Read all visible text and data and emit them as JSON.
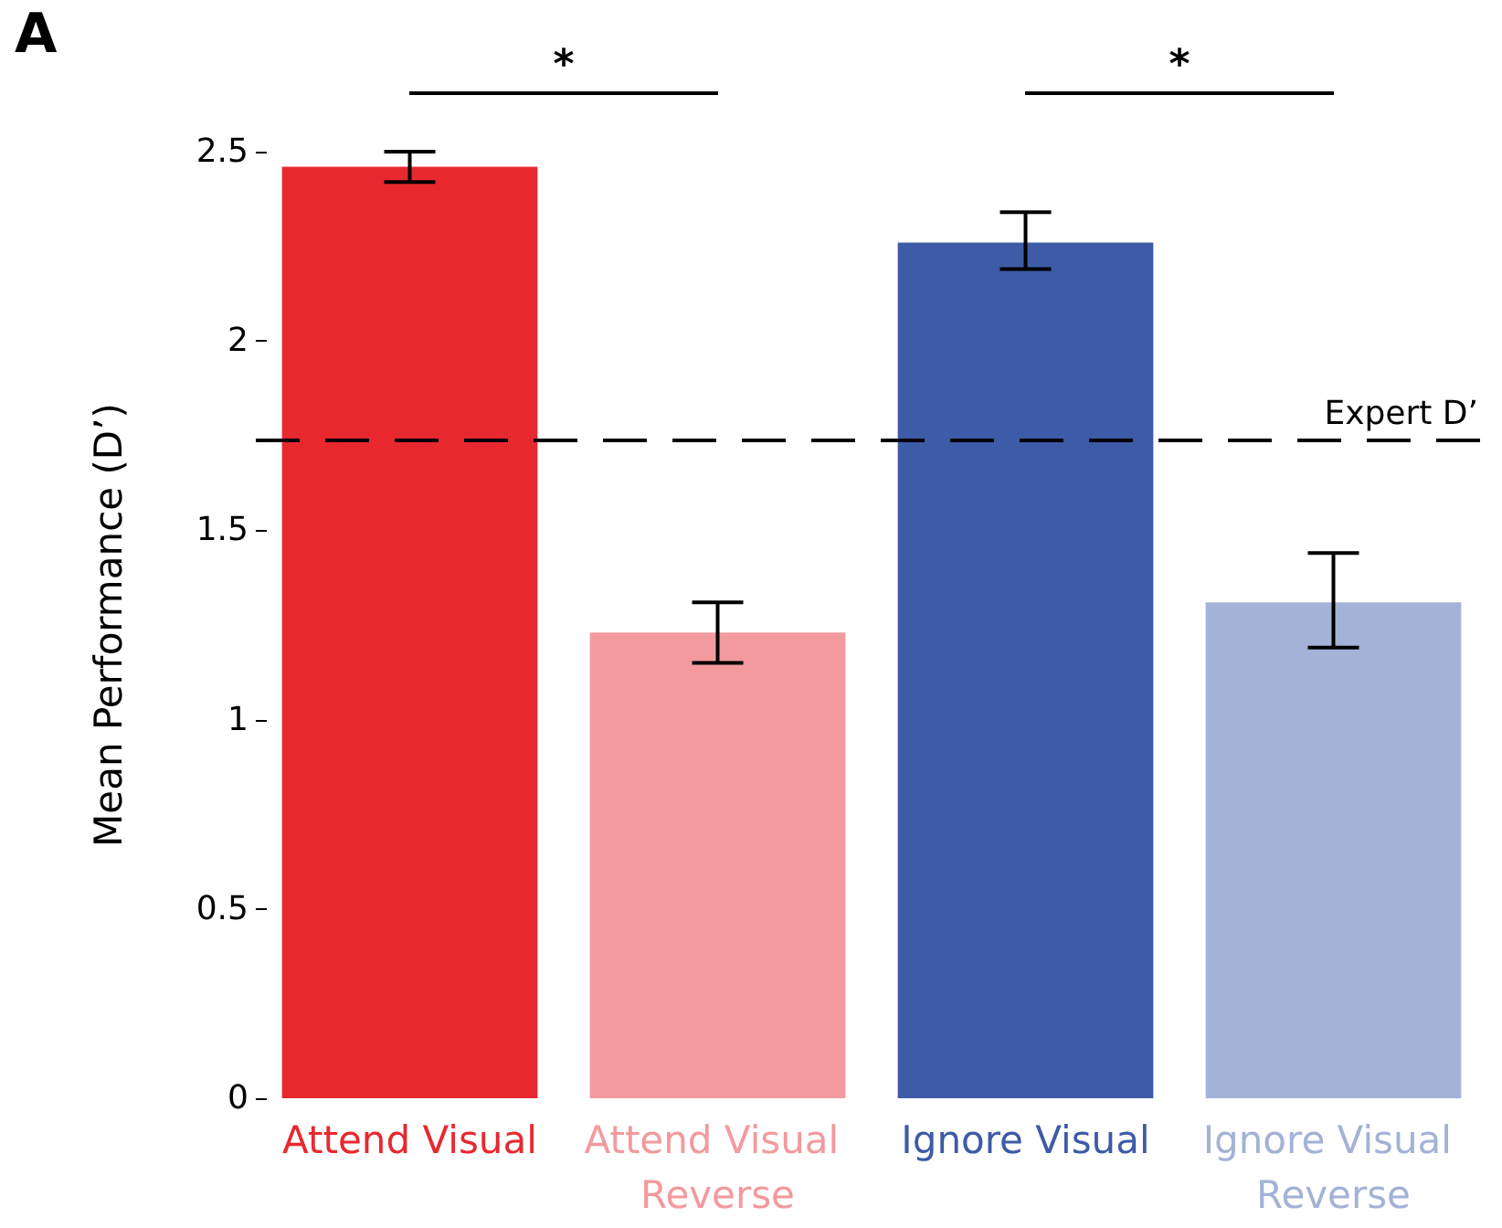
{
  "chart_data": {
    "type": "bar",
    "ylabel": "Mean Performance (D’)",
    "categories": [
      "Attend Visual",
      "Attend Visual Reverse",
      "Ignore Visual",
      "Ignore Visual Reverse"
    ],
    "values": [
      2.46,
      1.23,
      2.26,
      1.31
    ],
    "colors": [
      "#e8282f",
      "#f29a9e",
      "#3d5ba6",
      "#a3b2d6"
    ],
    "errors": [
      [
        2.42,
        2.5
      ],
      [
        1.15,
        1.31
      ],
      [
        2.19,
        2.34
      ],
      [
        1.19,
        1.44
      ]
    ],
    "ylim": [
      0,
      2.5
    ],
    "yticks": [
      0,
      0.5,
      1,
      1.5,
      2,
      2.5
    ],
    "grid": false,
    "ref_lines": [
      {
        "axis": "y",
        "value": 1.74,
        "label": "Expert D’",
        "color": "#000000",
        "line_style": "dashed"
      }
    ],
    "annotations": [
      "A",
      "*",
      "*"
    ]
  }
}
